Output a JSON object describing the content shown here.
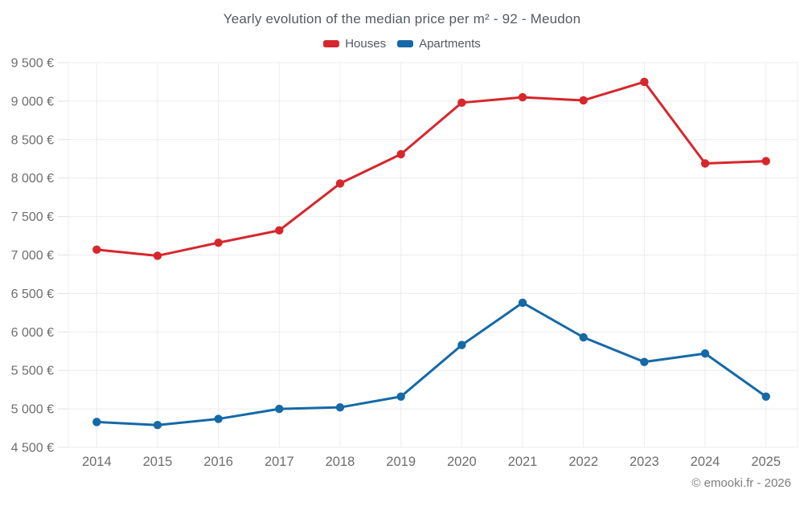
{
  "header": {
    "title": "Yearly evolution of the median price per m² - 92 - Meudon"
  },
  "footer": {
    "credit": "© emooki.fr - 2026"
  },
  "chart_data": {
    "type": "line",
    "title": "Yearly evolution of the median price per m² - 92 - Meudon",
    "categories": [
      "2014",
      "2015",
      "2016",
      "2017",
      "2018",
      "2019",
      "2020",
      "2021",
      "2022",
      "2023",
      "2024",
      "2025"
    ],
    "series": [
      {
        "name": "Houses",
        "color": "#d7262c",
        "values": [
          7070,
          6990,
          7160,
          7320,
          7930,
          8310,
          8980,
          9050,
          9010,
          9250,
          8190,
          8220
        ]
      },
      {
        "name": "Apartments",
        "color": "#1569a7",
        "values": [
          4830,
          4790,
          4870,
          5000,
          5020,
          5160,
          5830,
          6380,
          5930,
          5610,
          5720,
          5160
        ]
      }
    ],
    "xlabel": "",
    "ylabel": "",
    "ylim": [
      4500,
      9500
    ],
    "ytick_step": 500,
    "ytick_suffix": " €",
    "grid": true,
    "legend_position": "top",
    "marker": "circle"
  },
  "style": {
    "grid_color": "#ececec",
    "tick_color": "#e0e0e0",
    "axis_label_color": "#6e6e6e",
    "background": "#ffffff"
  }
}
